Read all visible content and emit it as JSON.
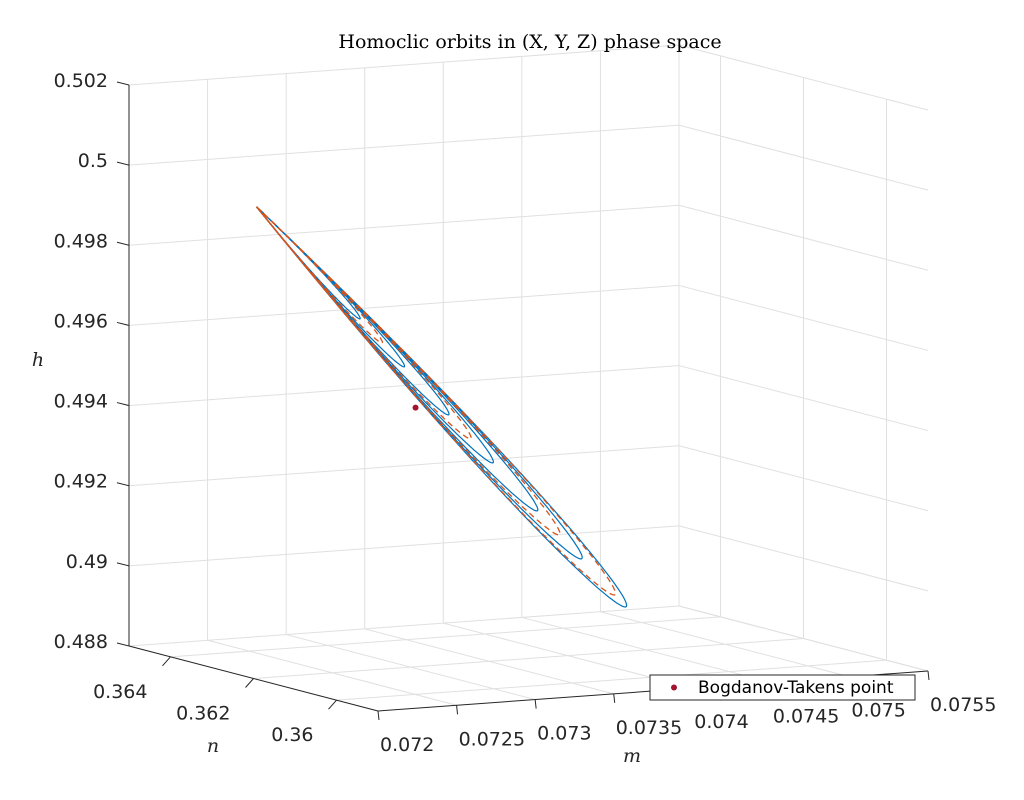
{
  "chart_data": {
    "type": "line",
    "title": "Homoclic orbits in (X, Y, Z) phase space",
    "projection": "3d",
    "xlabel": "m",
    "ylabel": "n",
    "zlabel": "h",
    "xlim": [
      0.072,
      0.0755
    ],
    "ylim": [
      0.359,
      0.365
    ],
    "zlim": [
      0.488,
      0.502
    ],
    "x_ticks": [
      "0.072",
      "0.0725",
      "0.073",
      "0.0735",
      "0.074",
      "0.0745",
      "0.075",
      "0.0755"
    ],
    "y_ticks": [
      "0.36",
      "0.362",
      "0.364"
    ],
    "z_ticks": [
      "0.488",
      "0.49",
      "0.492",
      "0.494",
      "0.496",
      "0.498",
      "0.5",
      "0.502"
    ],
    "grid": true,
    "legend": {
      "location": "bottom-right",
      "entries": [
        "Bogdanov-Takens point"
      ]
    },
    "bt_point": {
      "name": "Bogdanov-Takens point",
      "x": 0.07315,
      "y": 0.36245,
      "z": 0.49431,
      "color": "#a2142f"
    },
    "orbits": {
      "apex": {
        "x": 0.07268,
        "y": 0.3645,
        "z": 0.4989
      },
      "center": {
        "x": 0.0733,
        "y": 0.3624,
        "z": 0.4943
      },
      "family": [
        {
          "s": 0.28,
          "style": "solid",
          "color": "#0072bd"
        },
        {
          "s": 0.4,
          "style": "solid",
          "color": "#0072bd"
        },
        {
          "s": 0.52,
          "style": "solid",
          "color": "#0072bd"
        },
        {
          "s": 0.64,
          "style": "solid",
          "color": "#0072bd"
        },
        {
          "s": 0.76,
          "style": "solid",
          "color": "#0072bd"
        },
        {
          "s": 0.88,
          "style": "solid",
          "color": "#0072bd"
        },
        {
          "s": 1.0,
          "style": "solid",
          "color": "#0072bd"
        },
        {
          "s": 0.34,
          "style": "dashed",
          "color": "#d95319"
        },
        {
          "s": 0.58,
          "style": "dashed",
          "color": "#d95319"
        },
        {
          "s": 0.82,
          "style": "dashed",
          "color": "#d95319"
        },
        {
          "s": 0.97,
          "style": "dashed",
          "color": "#d95319"
        }
      ]
    }
  }
}
